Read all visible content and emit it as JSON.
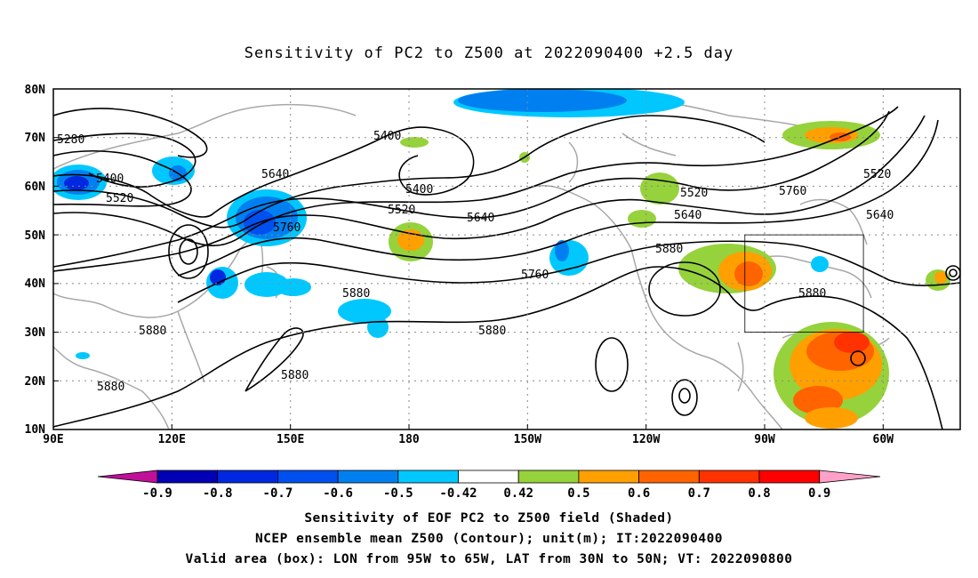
{
  "title": "Sensitivity of PC2 to Z500 at 2022090400 +2.5 day",
  "lat_labels": [
    "80N",
    "70N",
    "60N",
    "50N",
    "40N",
    "30N",
    "20N",
    "10N"
  ],
  "lon_labels": [
    "90E",
    "120E",
    "150E",
    "180",
    "150W",
    "120W",
    "90W",
    "60W"
  ],
  "contour_labels": [
    {
      "text": "5280"
    },
    {
      "text": "5400"
    },
    {
      "text": "5520"
    },
    {
      "text": "5400"
    },
    {
      "text": "5400"
    },
    {
      "text": "5640"
    },
    {
      "text": "5760"
    },
    {
      "text": "5520"
    },
    {
      "text": "5640"
    },
    {
      "text": "5880"
    },
    {
      "text": "5880"
    },
    {
      "text": "5880"
    },
    {
      "text": "5880"
    },
    {
      "text": "5880"
    },
    {
      "text": "5760"
    },
    {
      "text": "5880"
    },
    {
      "text": "5520"
    },
    {
      "text": "5640"
    },
    {
      "text": "5760"
    },
    {
      "text": "5520"
    },
    {
      "text": "5640"
    },
    {
      "text": "5880"
    }
  ],
  "colorbar": {
    "labels": [
      "-0.9",
      "-0.8",
      "-0.7",
      "-0.6",
      "-0.5",
      "-0.42",
      "0.42",
      "0.5",
      "0.6",
      "0.7",
      "0.8",
      "0.9"
    ],
    "colors": [
      "#c0109a",
      "#0000b4",
      "#0028e0",
      "#0050f0",
      "#0080f0",
      "#00c8ff",
      "#ffffff",
      "#96d23c",
      "#ffa000",
      "#ff6400",
      "#ff3200",
      "#ff0000",
      "#ffa0c8"
    ]
  },
  "valid_box": {
    "lon_min": -95,
    "lon_max": -65,
    "lat_min": 30,
    "lat_max": 50
  },
  "captions": [
    "Sensitivity of EOF PC2 to Z500 field (Shaded)",
    "NCEP ensemble mean Z500 (Contour); unit(m); IT:2022090400",
    "Valid area (box): LON from 95W to 65W, LAT from 30N to 50N; VT: 2022090800"
  ]
}
